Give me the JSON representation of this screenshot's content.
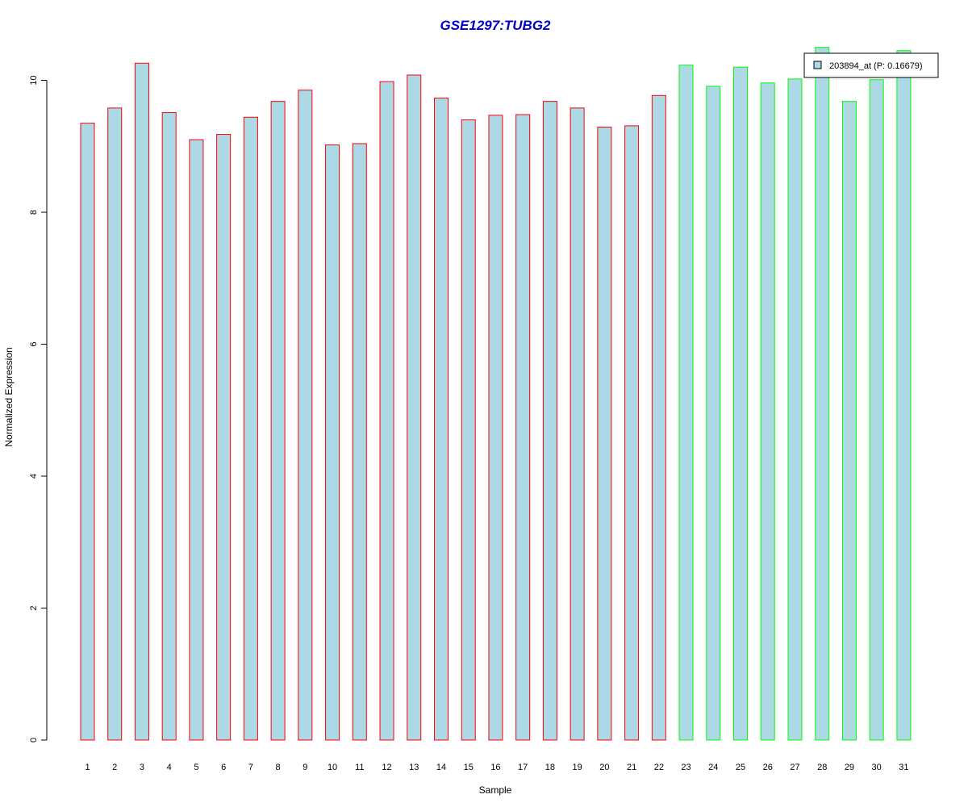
{
  "chart_data": {
    "type": "bar",
    "title": "GSE1297:TUBG2",
    "xlabel": "Sample",
    "ylabel": "Normalized Expression",
    "ylim": [
      0,
      10.5
    ],
    "y_ticks": [
      0,
      2,
      4,
      6,
      8,
      10
    ],
    "categories": [
      "1",
      "2",
      "3",
      "4",
      "5",
      "6",
      "7",
      "8",
      "9",
      "10",
      "11",
      "12",
      "13",
      "14",
      "15",
      "16",
      "17",
      "18",
      "19",
      "20",
      "21",
      "22",
      "23",
      "24",
      "25",
      "26",
      "27",
      "28",
      "29",
      "30",
      "31"
    ],
    "values": [
      9.35,
      9.58,
      10.26,
      9.51,
      9.1,
      9.18,
      9.44,
      9.68,
      9.85,
      9.02,
      9.04,
      9.98,
      10.08,
      9.73,
      9.4,
      9.47,
      9.48,
      9.68,
      9.58,
      9.29,
      9.31,
      9.77,
      10.23,
      9.91,
      10.2,
      9.96,
      10.02,
      10.5,
      9.68,
      10.01,
      10.45
    ],
    "groups": [
      "red",
      "red",
      "red",
      "red",
      "red",
      "red",
      "red",
      "red",
      "red",
      "red",
      "red",
      "red",
      "red",
      "red",
      "red",
      "red",
      "red",
      "red",
      "red",
      "red",
      "red",
      "red",
      "green",
      "green",
      "green",
      "green",
      "green",
      "green",
      "green",
      "green",
      "green"
    ],
    "bar_fill": "#add8e6",
    "group_colors": {
      "red": "#ff0000",
      "green": "#00ff00"
    },
    "title_color": "#0000cc",
    "legend": {
      "label": "203894_at (P: 0.16679)",
      "placement": "top-right"
    },
    "grid": false
  }
}
